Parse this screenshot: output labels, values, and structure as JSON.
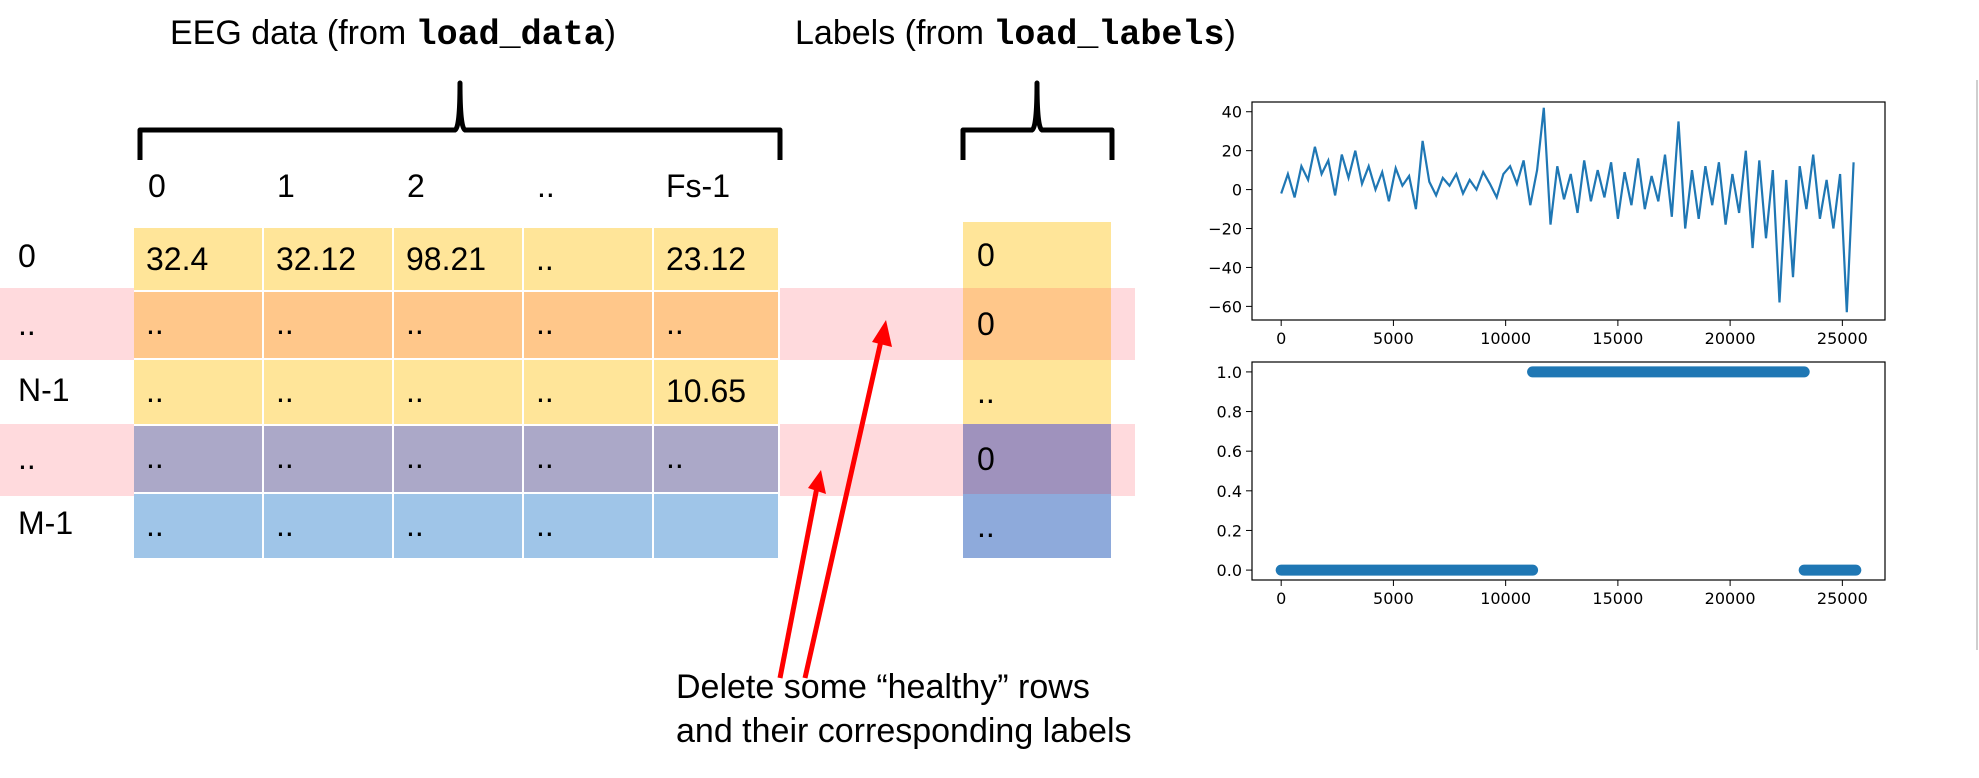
{
  "titles": {
    "eeg_prefix": "EEG data (from ",
    "eeg_func": "load_data",
    "eeg_suffix": ")",
    "labels_prefix": "Labels (from ",
    "labels_func": "load_labels",
    "labels_suffix": ")"
  },
  "columns": [
    "0",
    "1",
    "2",
    "..",
    "Fs-1"
  ],
  "rows": [
    {
      "label": "0",
      "cells": [
        "32.4",
        "32.12",
        "98.21",
        "..",
        "23.12"
      ],
      "target": "0",
      "color": "#ffe599",
      "target_color": "#ffe599"
    },
    {
      "label": "..",
      "cells": [
        "..",
        "..",
        "..",
        "..",
        ".."
      ],
      "target": "0",
      "color": "#ffc78a",
      "target_color": "#ffc78a"
    },
    {
      "label": "N-1",
      "cells": [
        "..",
        "..",
        "..",
        "..",
        "10.65"
      ],
      "target": "..",
      "color": "#ffe599",
      "target_color": "#ffe599"
    },
    {
      "label": "..",
      "cells": [
        "..",
        "..",
        "..",
        "..",
        ".."
      ],
      "target": "0",
      "color": "#aba8c8",
      "target_color": "#9f92bd"
    },
    {
      "label": "M-1",
      "cells": [
        "..",
        "..",
        "..",
        "..",
        ""
      ],
      "target": "..",
      "color": "#9fc5e8",
      "target_color": "#8eaadb"
    }
  ],
  "highlight_rows": [
    1,
    3
  ],
  "colors": {
    "highlight_band": "#ffdadd",
    "arrow": "#ff0000",
    "series": "#1f77b4"
  },
  "annotation": {
    "line1": "Delete some “healthy” rows",
    "line2": "and their corresponding labels"
  },
  "chart_data": [
    {
      "type": "line",
      "title": "",
      "xlabel": "",
      "ylabel": "",
      "xlim": [
        -1300,
        26900
      ],
      "ylim": [
        -67,
        45
      ],
      "xticks": [
        0,
        5000,
        10000,
        15000,
        20000,
        25000
      ],
      "yticks": [
        40,
        20,
        0,
        -20,
        -40,
        -60
      ],
      "series": [
        {
          "x": [
            0,
            300,
            600,
            900,
            1200,
            1500,
            1800,
            2100,
            2400,
            2700,
            3000,
            3300,
            3600,
            3900,
            4200,
            4500,
            4800,
            5100,
            5400,
            5700,
            6000,
            6300,
            6600,
            6900,
            7200,
            7500,
            7800,
            8100,
            8400,
            8700,
            9000,
            9300,
            9600,
            9900,
            10200,
            10500,
            10800,
            11100,
            11400,
            11700,
            12000,
            12300,
            12600,
            12900,
            13200,
            13500,
            13800,
            14100,
            14400,
            14700,
            15000,
            15300,
            15600,
            15900,
            16200,
            16500,
            16800,
            17100,
            17400,
            17700,
            18000,
            18300,
            18600,
            18900,
            19200,
            19500,
            19800,
            20100,
            20400,
            20700,
            21000,
            21300,
            21600,
            21900,
            22200,
            22500,
            22800,
            23100,
            23400,
            23700,
            24000,
            24300,
            24600,
            24900,
            25200,
            25500
          ],
          "y": [
            -2,
            8,
            -4,
            12,
            5,
            22,
            8,
            15,
            -3,
            18,
            6,
            20,
            3,
            12,
            0,
            9,
            -6,
            11,
            2,
            7,
            -10,
            25,
            4,
            -3,
            6,
            2,
            8,
            -2,
            5,
            0,
            9,
            3,
            -4,
            8,
            12,
            3,
            15,
            -8,
            10,
            42,
            -18,
            12,
            -5,
            8,
            -12,
            15,
            -6,
            10,
            -4,
            14,
            -15,
            9,
            -8,
            16,
            -10,
            7,
            -6,
            18,
            -14,
            35,
            -20,
            10,
            -15,
            12,
            -8,
            14,
            -18,
            8,
            -12,
            20,
            -30,
            15,
            -25,
            10,
            -58,
            5,
            -45,
            12,
            -10,
            18,
            -15,
            5,
            -20,
            8,
            -63,
            14
          ]
        }
      ]
    },
    {
      "type": "scatter",
      "title": "",
      "xlabel": "",
      "ylabel": "",
      "xlim": [
        -1300,
        26900
      ],
      "ylim": [
        -0.05,
        1.05
      ],
      "xticks": [
        0,
        5000,
        10000,
        15000,
        20000,
        25000
      ],
      "yticks": [
        1.0,
        0.8,
        0.6,
        0.4,
        0.2,
        0.0
      ],
      "series": [
        {
          "segments": [
            {
              "x_start": 0,
              "x_end": 11200,
              "y": 0
            },
            {
              "x_start": 11200,
              "x_end": 23300,
              "y": 1
            },
            {
              "x_start": 23300,
              "x_end": 25600,
              "y": 0
            }
          ]
        }
      ]
    }
  ]
}
